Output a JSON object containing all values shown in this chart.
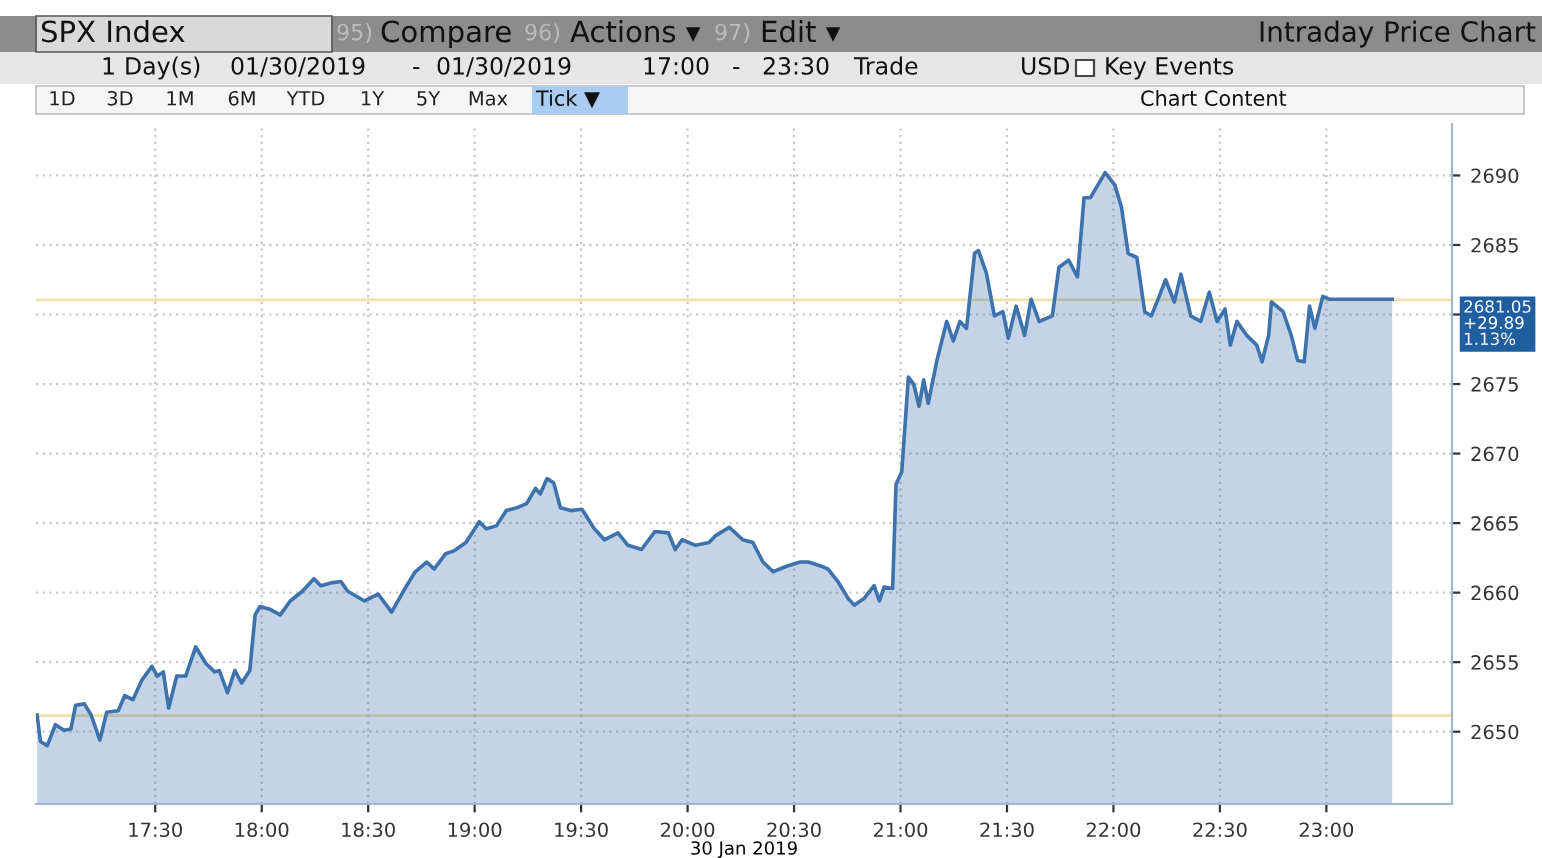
{
  "chart_data": {
    "type": "area",
    "title": "Intraday Price Chart",
    "xlabel": "30 Jan 2019",
    "x": [
      16.945,
      16.961,
      16.993,
      17.031,
      17.072,
      17.104,
      17.126,
      17.167,
      17.199,
      17.24,
      17.272,
      17.326,
      17.357,
      17.395,
      17.437,
      17.484,
      17.51,
      17.538,
      17.563,
      17.601,
      17.643,
      17.69,
      17.738,
      17.779,
      17.801,
      17.839,
      17.874,
      17.906,
      17.944,
      17.969,
      17.992,
      18.039,
      18.087,
      18.134,
      18.191,
      18.245,
      18.277,
      18.325,
      18.372,
      18.404,
      18.483,
      18.547,
      18.61,
      18.673,
      18.721,
      18.775,
      18.81,
      18.864,
      18.902,
      18.959,
      19.022,
      19.054,
      19.102,
      19.149,
      19.197,
      19.244,
      19.286,
      19.308,
      19.34,
      19.371,
      19.403,
      19.451,
      19.504,
      19.562,
      19.609,
      19.673,
      19.72,
      19.784,
      19.847,
      19.91,
      19.942,
      19.974,
      20.037,
      20.101,
      20.132,
      20.196,
      20.259,
      20.307,
      20.354,
      20.402,
      20.465,
      20.529,
      20.567,
      20.628,
      20.659,
      20.706,
      20.753,
      20.783,
      20.83,
      20.876,
      20.901,
      20.923,
      20.963,
      20.979,
      21.006,
      21.037,
      21.062,
      21.087,
      21.109,
      21.13,
      21.171,
      21.217,
      21.248,
      21.279,
      21.31,
      21.348,
      21.366,
      21.403,
      21.441,
      21.481,
      21.506,
      21.543,
      21.583,
      21.613,
      21.651,
      21.713,
      21.744,
      21.79,
      21.831,
      21.862,
      21.892,
      21.961,
      22.007,
      22.038,
      22.069,
      22.11,
      22.147,
      22.178,
      22.215,
      22.245,
      22.286,
      22.317,
      22.363,
      22.41,
      22.45,
      22.487,
      22.524,
      22.549,
      22.58,
      22.626,
      22.673,
      22.698,
      22.729,
      22.742,
      22.797,
      22.835,
      22.865,
      22.896,
      22.921,
      22.946,
      22.983,
      23.014,
      23.309
    ],
    "series": [
      {
        "color": "#3d72ad",
        "values": [
          2651.2,
          2649.3,
          2649.0,
          2650.5,
          2650.1,
          2650.2,
          2651.9,
          2652.0,
          2651.2,
          2649.4,
          2651.4,
          2651.5,
          2652.6,
          2652.3,
          2653.7,
          2654.7,
          2654.0,
          2654.3,
          2651.7,
          2654.0,
          2654.0,
          2656.1,
          2654.9,
          2654.3,
          2654.4,
          2652.8,
          2654.4,
          2653.5,
          2654.4,
          2658.4,
          2659.0,
          2658.8,
          2658.4,
          2659.4,
          2660.1,
          2661.0,
          2660.5,
          2660.7,
          2660.8,
          2660.1,
          2659.4,
          2659.9,
          2658.6,
          2660.3,
          2661.5,
          2662.2,
          2661.7,
          2662.8,
          2663.0,
          2663.6,
          2665.1,
          2664.6,
          2664.8,
          2665.9,
          2666.1,
          2666.4,
          2667.5,
          2667.1,
          2668.2,
          2667.9,
          2666.1,
          2665.9,
          2666.0,
          2664.6,
          2663.8,
          2664.3,
          2663.4,
          2663.1,
          2664.4,
          2664.3,
          2663.1,
          2663.8,
          2663.4,
          2663.6,
          2664.1,
          2664.7,
          2663.8,
          2663.6,
          2662.2,
          2661.5,
          2661.9,
          2662.2,
          2662.2,
          2661.9,
          2661.7,
          2660.8,
          2659.6,
          2659.1,
          2659.6,
          2660.5,
          2659.4,
          2660.4,
          2660.3,
          2667.8,
          2668.7,
          2675.5,
          2675.0,
          2673.4,
          2675.3,
          2673.6,
          2676.7,
          2679.5,
          2678.1,
          2679.5,
          2679.0,
          2684.4,
          2684.6,
          2683.0,
          2679.9,
          2680.2,
          2678.3,
          2680.6,
          2678.5,
          2681.1,
          2679.5,
          2679.9,
          2683.4,
          2683.9,
          2682.7,
          2688.4,
          2688.4,
          2690.2,
          2689.3,
          2687.7,
          2684.4,
          2684.1,
          2680.2,
          2679.9,
          2681.3,
          2682.5,
          2680.9,
          2682.9,
          2679.9,
          2679.5,
          2681.6,
          2679.5,
          2680.4,
          2677.8,
          2679.5,
          2678.5,
          2677.8,
          2676.6,
          2678.5,
          2680.9,
          2680.2,
          2678.5,
          2676.7,
          2676.6,
          2680.6,
          2679.0,
          2681.3,
          2681.1,
          2681.1
        ]
      }
    ],
    "xlim": [
      16.94,
      23.59
    ],
    "ylim": [
      2644.8,
      2693.7
    ],
    "xticks": [
      {
        "value": 17.5,
        "label": "17:30"
      },
      {
        "value": 18,
        "label": "18:00"
      },
      {
        "value": 18.5,
        "label": "18:30"
      },
      {
        "value": 19,
        "label": "19:00"
      },
      {
        "value": 19.5,
        "label": "19:30"
      },
      {
        "value": 20,
        "label": "20:00"
      },
      {
        "value": 20.5,
        "label": "20:30"
      },
      {
        "value": 21,
        "label": "21:00"
      },
      {
        "value": 21.5,
        "label": "21:30"
      },
      {
        "value": 22,
        "label": "22:00"
      },
      {
        "value": 22.5,
        "label": "22:30"
      },
      {
        "value": 23,
        "label": "23:00"
      }
    ],
    "yticks": [
      2650,
      2655,
      2660,
      2665,
      2670,
      2675,
      {
        "value": 2680,
        "label": null
      },
      2685,
      2690
    ],
    "ref_lines": [
      {
        "axis": "y",
        "value": 2651.16,
        "color": "#f0e2a8"
      },
      {
        "axis": "y",
        "value": 2681.05,
        "label": "2681.05\n+29.89\n1.13%",
        "color": "#f0e2a8"
      }
    ],
    "grid": true,
    "legend": false,
    "annotations": [
      "SPX Index",
      "95)",
      "Compare",
      "96)",
      "Actions ▾",
      "97)",
      "Edit ▾",
      "1",
      "Day(s)",
      "01/30/2019",
      "-",
      "01/30/2019",
      "17:00",
      "-",
      "23:30",
      "Trade",
      "USD",
      "Key Events",
      "1D",
      "3D",
      "1M",
      "6M",
      "YTD",
      "1Y",
      "5Y",
      "Max",
      "Tick ▼",
      "Chart Content"
    ]
  }
}
